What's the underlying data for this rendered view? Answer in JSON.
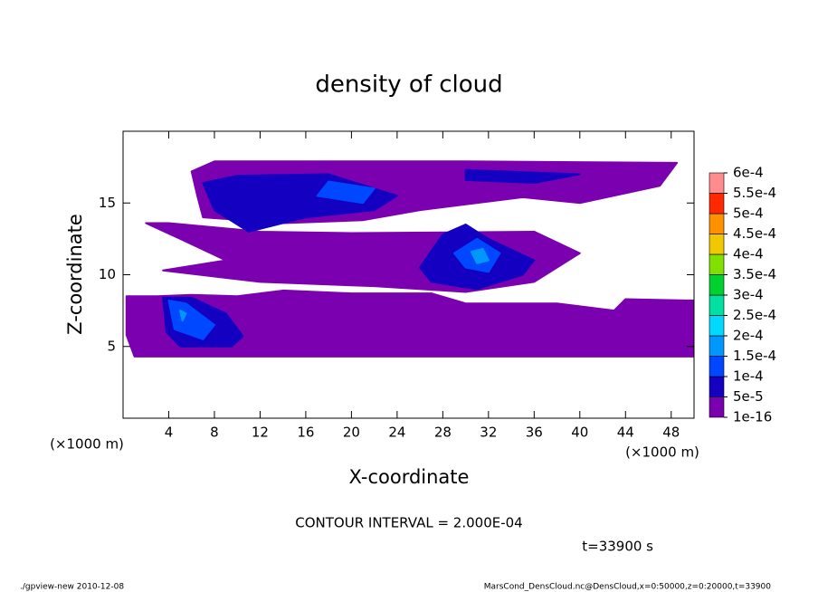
{
  "chart_data": {
    "type": "contour",
    "title": "density of cloud",
    "x_label": "X-coordinate",
    "y_label": "Z-coordinate",
    "x_unit": "(×1000 m)",
    "annotation": "CONTOUR INTERVAL = 2.000E-04",
    "time_label": "t=33900 s",
    "footer_left": "./gpview-new   2010-12-08",
    "footer_right": "MarsCond_DensCloud.nc@DensCloud,x=0:50000,z=0:20000,t=33900",
    "xlim": [
      0,
      50
    ],
    "ylim": [
      0,
      20
    ],
    "xticks": [
      4,
      8,
      12,
      16,
      20,
      24,
      28,
      32,
      36,
      40,
      44,
      48
    ],
    "yticks": [
      5,
      10,
      15
    ],
    "colorbar": {
      "ticks": [
        {
          "value": 1e-16,
          "label": "1e-16"
        },
        {
          "value": 5e-05,
          "label": "5e-5"
        },
        {
          "value": 0.0001,
          "label": "1e-4"
        },
        {
          "value": 0.00015,
          "label": "1.5e-4"
        },
        {
          "value": 0.0002,
          "label": "2e-4"
        },
        {
          "value": 0.00025,
          "label": "2.5e-4"
        },
        {
          "value": 0.0003,
          "label": "3e-4"
        },
        {
          "value": 0.00035,
          "label": "3.5e-4"
        },
        {
          "value": 0.0004,
          "label": "4e-4"
        },
        {
          "value": 0.00045,
          "label": "4.5e-4"
        },
        {
          "value": 0.0005,
          "label": "5e-4"
        },
        {
          "value": 0.00055,
          "label": "5.5e-4"
        },
        {
          "value": 0.0006,
          "label": "6e-4"
        }
      ],
      "colors": [
        "#7a00b0",
        "#1400c0",
        "#0048ff",
        "#0098ff",
        "#00d8ff",
        "#00e0a0",
        "#00d030",
        "#80e000",
        "#f0c800",
        "#ff9000",
        "#ff2800",
        "#ff8c8c"
      ]
    },
    "regions": [
      {
        "level": 1e-16,
        "points": [
          [
            0.3,
            5.8
          ],
          [
            1,
            4.3
          ],
          [
            50,
            4.3
          ],
          [
            50,
            8.2
          ],
          [
            44,
            8.3
          ],
          [
            43,
            7.5
          ],
          [
            38,
            8
          ],
          [
            30,
            8
          ],
          [
            27,
            8.7
          ],
          [
            20,
            8.7
          ],
          [
            14,
            8.9
          ],
          [
            10,
            8.5
          ],
          [
            6,
            8.6
          ],
          [
            3,
            8.5
          ],
          [
            0.3,
            8.5
          ]
        ]
      },
      {
        "level": 1e-16,
        "points": [
          [
            3.5,
            10.3
          ],
          [
            12,
            9.5
          ],
          [
            22,
            9.2
          ],
          [
            30,
            8.8
          ],
          [
            36,
            9.5
          ],
          [
            40,
            11.5
          ],
          [
            36,
            13
          ],
          [
            20,
            12.9
          ],
          [
            12,
            13
          ],
          [
            4,
            13.6
          ],
          [
            2,
            13.6
          ],
          [
            5,
            12.5
          ],
          [
            9,
            11
          ]
        ]
      },
      {
        "level": 1e-16,
        "points": [
          [
            6,
            17.2
          ],
          [
            8,
            17.9
          ],
          [
            30,
            17.9
          ],
          [
            48.5,
            17.8
          ],
          [
            47,
            16.2
          ],
          [
            40,
            15
          ],
          [
            35,
            15.4
          ],
          [
            26,
            14.5
          ],
          [
            21,
            13.8
          ],
          [
            14,
            13.6
          ],
          [
            7,
            14
          ],
          [
            6.5,
            15.5
          ]
        ]
      },
      {
        "level": 5e-05,
        "points": [
          [
            3.5,
            8.4
          ],
          [
            6,
            8.4
          ],
          [
            9,
            7.3
          ],
          [
            10.5,
            5.7
          ],
          [
            9.5,
            5
          ],
          [
            5,
            5
          ],
          [
            3.8,
            6
          ]
        ]
      },
      {
        "level": 5e-05,
        "points": [
          [
            26,
            10.5
          ],
          [
            28,
            12.8
          ],
          [
            30,
            13.5
          ],
          [
            32,
            12.5
          ],
          [
            36,
            11
          ],
          [
            35,
            10
          ],
          [
            31,
            9
          ],
          [
            27,
            9.5
          ]
        ]
      },
      {
        "level": 5e-05,
        "points": [
          [
            7,
            16.4
          ],
          [
            10,
            16.9
          ],
          [
            18,
            17
          ],
          [
            24,
            15.5
          ],
          [
            22,
            14.5
          ],
          [
            16,
            14
          ],
          [
            11,
            13
          ],
          [
            8,
            14.5
          ]
        ]
      },
      {
        "level": 5e-05,
        "points": [
          [
            30,
            17.3
          ],
          [
            40,
            17
          ],
          [
            36,
            16.4
          ],
          [
            30,
            16.6
          ]
        ]
      },
      {
        "level": 0.0001,
        "points": [
          [
            4,
            8.2
          ],
          [
            5.5,
            8
          ],
          [
            8,
            6.5
          ],
          [
            7,
            5.5
          ],
          [
            4.5,
            6.2
          ]
        ]
      },
      {
        "level": 0.0001,
        "points": [
          [
            29,
            11.5
          ],
          [
            31,
            12.5
          ],
          [
            33,
            11.5
          ],
          [
            32,
            10.2
          ],
          [
            30,
            10.5
          ]
        ]
      },
      {
        "level": 0.0001,
        "points": [
          [
            18,
            16.5
          ],
          [
            22,
            16
          ],
          [
            21,
            15
          ],
          [
            17,
            15.5
          ]
        ]
      },
      {
        "level": 0.00015,
        "points": [
          [
            30.5,
            11.6
          ],
          [
            31.5,
            11.8
          ],
          [
            32,
            11
          ],
          [
            31,
            10.8
          ]
        ]
      },
      {
        "level": 0.00015,
        "points": [
          [
            5,
            7.5
          ],
          [
            5.5,
            7.3
          ],
          [
            5.2,
            6.8
          ]
        ]
      }
    ]
  }
}
